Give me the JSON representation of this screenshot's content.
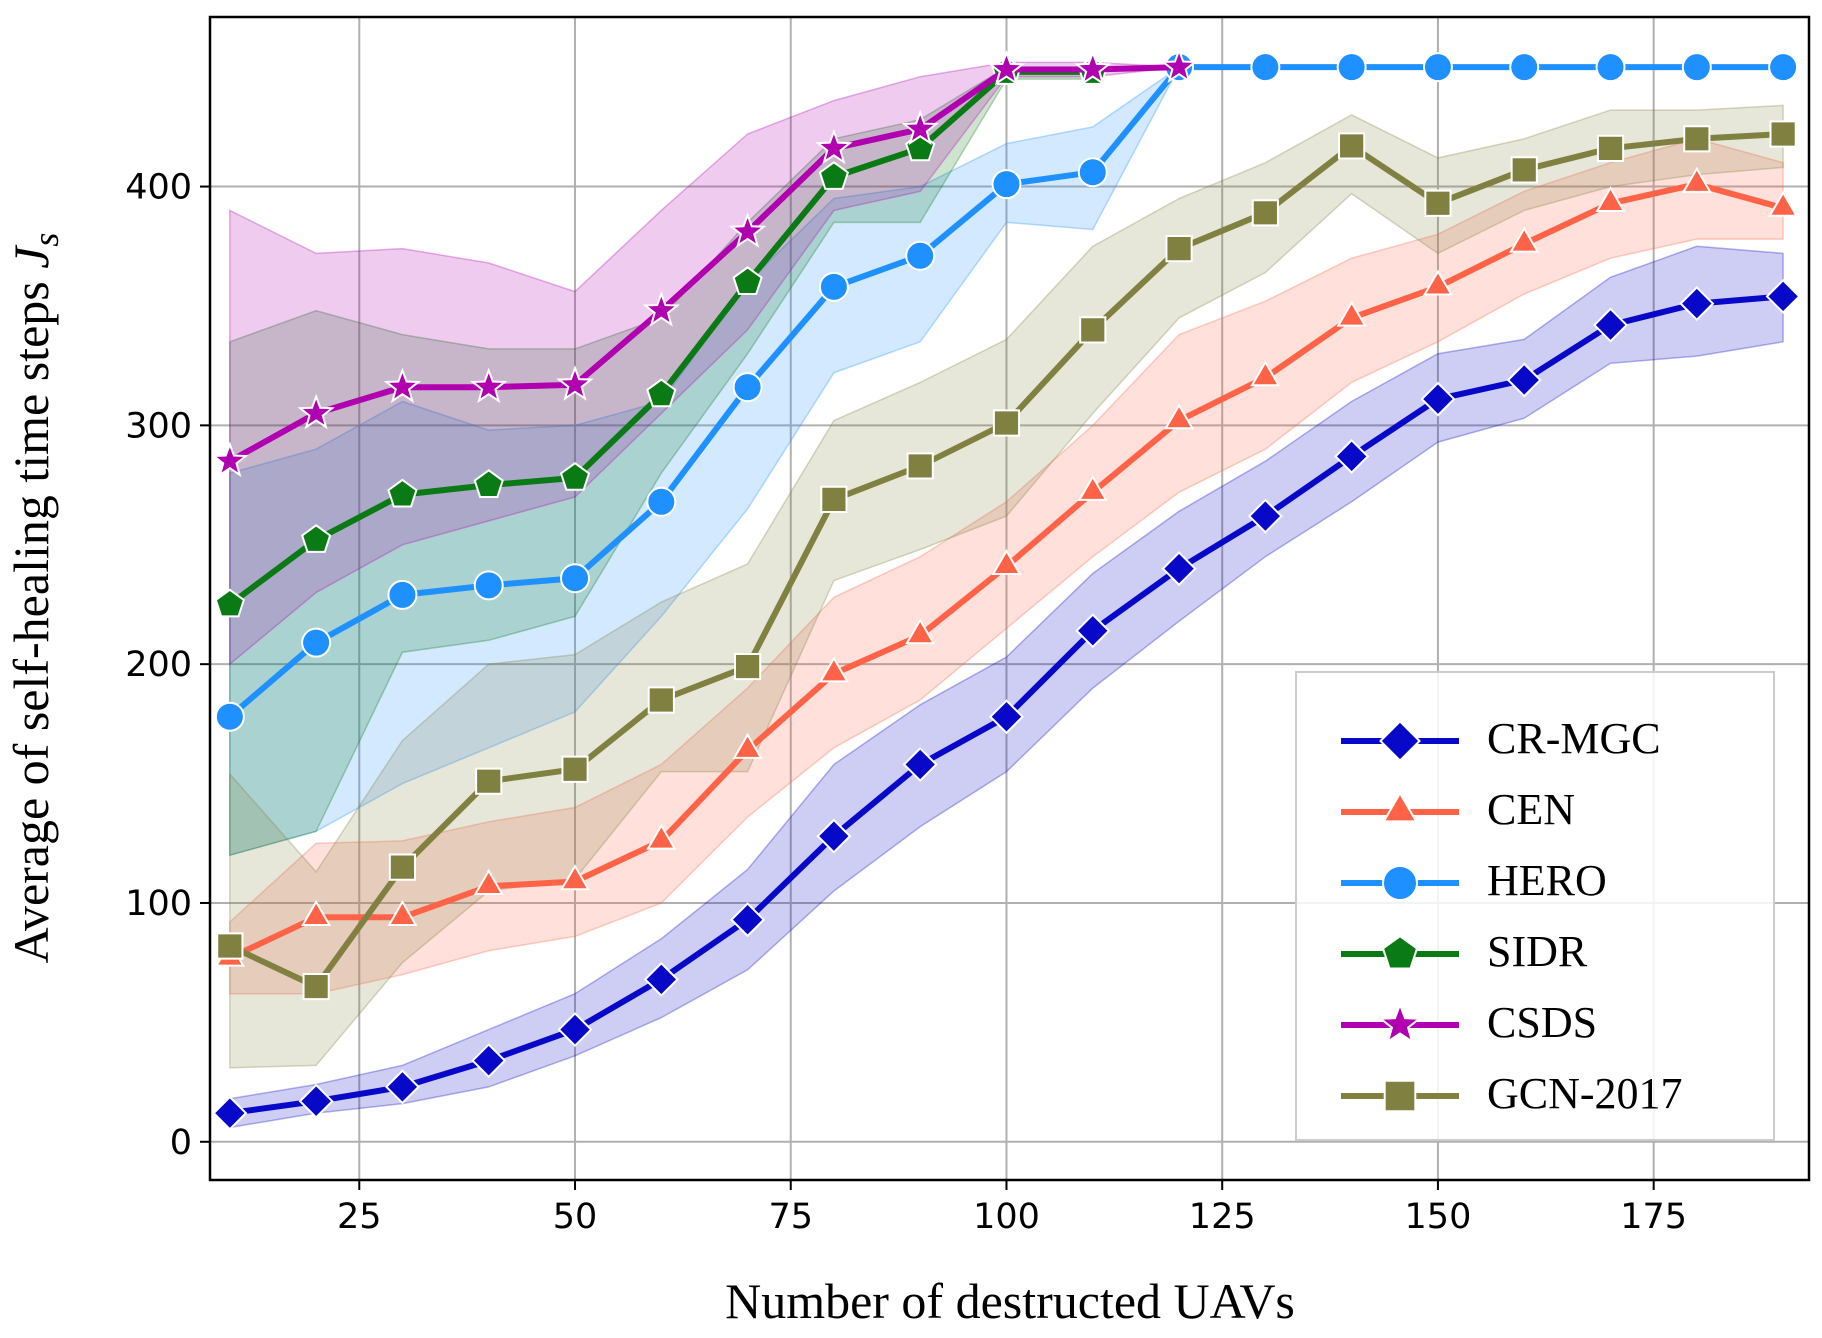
{
  "chart_data": {
    "type": "line",
    "xlabel": "Number of destructed UAVs",
    "ylabel": "Average of self-healing time steps ",
    "ylabel_symbol": "J",
    "ylabel_subscript": "s",
    "x": [
      10,
      20,
      30,
      40,
      50,
      60,
      70,
      80,
      90,
      100,
      110,
      120,
      130,
      140,
      150,
      160,
      170,
      180,
      190
    ],
    "xlim": [
      7.7,
      193
    ],
    "xticks": [
      25,
      50,
      75,
      100,
      125,
      150,
      175
    ],
    "ylim": [
      -16,
      471
    ],
    "yticks": [
      0,
      100,
      200,
      300,
      400
    ],
    "grid": true,
    "legend": "lower right",
    "series": [
      {
        "name": "CR-MGC",
        "color": "#0808c8",
        "marker": "diamond",
        "values": [
          12,
          17,
          23,
          34,
          47,
          68,
          93,
          128,
          158,
          178,
          214,
          240,
          262,
          287,
          311,
          319,
          342,
          351,
          354
        ],
        "lower": [
          6,
          12,
          16,
          23,
          36,
          52,
          72,
          105,
          132,
          155,
          190,
          218,
          245,
          268,
          293,
          303,
          326,
          329,
          335
        ],
        "upper": [
          18,
          24,
          32,
          47,
          62,
          85,
          114,
          158,
          183,
          203,
          238,
          264,
          285,
          310,
          330,
          336,
          362,
          375,
          372
        ]
      },
      {
        "name": "CEN",
        "color": "#ff6347",
        "marker": "triangle",
        "values": [
          77,
          94,
          94,
          107,
          109,
          126,
          164,
          196,
          212,
          241,
          272,
          302,
          320,
          345,
          358,
          376,
          393,
          401,
          391
        ],
        "lower": [
          62,
          62,
          70,
          80,
          86,
          100,
          136,
          165,
          185,
          215,
          245,
          272,
          290,
          318,
          335,
          355,
          370,
          378,
          378
        ],
        "upper": [
          92,
          125,
          126,
          134,
          140,
          158,
          190,
          228,
          245,
          268,
          300,
          338,
          352,
          370,
          380,
          398,
          410,
          420,
          410
        ]
      },
      {
        "name": "HERO",
        "color": "#1e90ff",
        "marker": "circle",
        "values": [
          178,
          209,
          229,
          233,
          236,
          268,
          316,
          358,
          371,
          401,
          406,
          450,
          450,
          450,
          450,
          450,
          450,
          450,
          450
        ],
        "lower": [
          120,
          130,
          150,
          165,
          180,
          220,
          265,
          322,
          335,
          385,
          382,
          450,
          450,
          450,
          450,
          450,
          450,
          450,
          450
        ],
        "upper": [
          280,
          290,
          310,
          298,
          300,
          310,
          360,
          395,
          400,
          418,
          425,
          450,
          450,
          450,
          450,
          450,
          450,
          450,
          450
        ]
      },
      {
        "name": "SIDR",
        "color": "#0a7a14",
        "marker": "pentagon",
        "values": [
          225,
          252,
          271,
          275,
          278,
          313,
          360,
          404,
          416,
          448,
          448,
          null,
          null,
          null,
          null,
          null,
          null,
          null,
          null
        ],
        "lower": [
          120,
          130,
          205,
          210,
          220,
          280,
          330,
          385,
          385,
          445,
          445,
          null,
          null,
          null,
          null,
          null,
          null,
          null,
          null
        ],
        "upper": [
          335,
          348,
          338,
          332,
          332,
          345,
          385,
          420,
          428,
          450,
          450,
          null,
          null,
          null,
          null,
          null,
          null,
          null,
          null
        ]
      },
      {
        "name": "CSDS",
        "color": "#b000b0",
        "marker": "star",
        "values": [
          285,
          305,
          316,
          316,
          317,
          348,
          381,
          416,
          424,
          449,
          449,
          450,
          null,
          null,
          null,
          null,
          null,
          null,
          null
        ],
        "lower": [
          200,
          230,
          250,
          260,
          270,
          305,
          340,
          390,
          398,
          446,
          446,
          450,
          null,
          null,
          null,
          null,
          null,
          null,
          null
        ],
        "upper": [
          390,
          372,
          374,
          368,
          356,
          390,
          422,
          436,
          446,
          452,
          452,
          450,
          null,
          null,
          null,
          null,
          null,
          null,
          null
        ]
      },
      {
        "name": "GCN-2017",
        "color": "#808040",
        "marker": "square",
        "values": [
          82,
          65,
          115,
          151,
          156,
          185,
          199,
          269,
          283,
          301,
          340,
          374,
          389,
          417,
          393,
          407,
          416,
          420,
          422
        ],
        "lower": [
          31,
          32,
          75,
          105,
          110,
          155,
          155,
          235,
          248,
          262,
          305,
          345,
          364,
          397,
          372,
          390,
          400,
          405,
          408
        ],
        "upper": [
          154,
          113,
          168,
          200,
          204,
          226,
          242,
          302,
          318,
          336,
          375,
          395,
          410,
          430,
          412,
          420,
          432,
          432,
          434
        ]
      }
    ]
  }
}
